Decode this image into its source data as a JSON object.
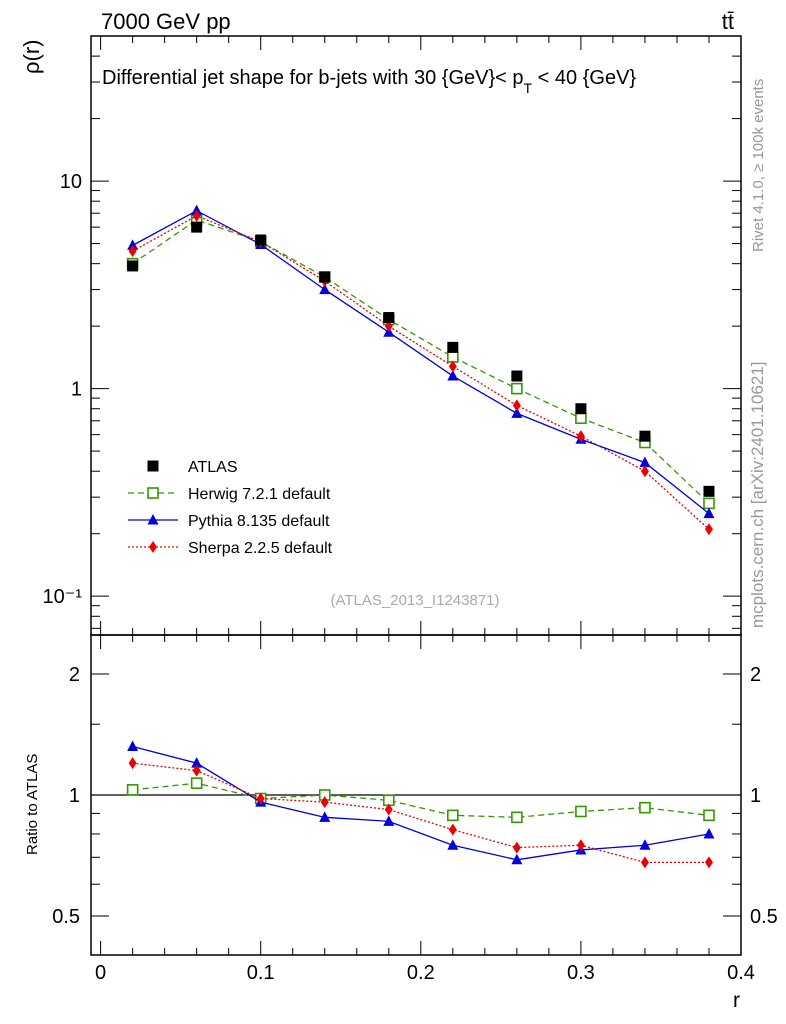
{
  "header": {
    "left": "7000 GeV pp",
    "right": "tt̄"
  },
  "side_labels": {
    "rivet": "Rivet 4.1.0, ≥ 100k events",
    "mcplots": "mcplots.cern.ch [arXiv:2401.10621]"
  },
  "chart_data": {
    "type": "scatter",
    "title_parts": {
      "main": "Differential jet shape for b-jets with 30 {GeV}< p",
      "sub": "T",
      "end": " < 40 {GeV}"
    },
    "analysis_label": "(ATLAS_2013_I1243871)",
    "xlabel": "r",
    "ylabel_main": "ρ(r)",
    "ylabel_ratio": "Ratio to ATLAS",
    "xlim": [
      -0.006,
      0.4
    ],
    "ylim_main": [
      0.065,
      50
    ],
    "ylim_ratio": [
      0.4,
      2.5
    ],
    "yscale": "log",
    "x_ticks": [
      {
        "value": 0,
        "label": "0"
      },
      {
        "value": 0.1,
        "label": "0.1"
      },
      {
        "value": 0.2,
        "label": "0.2"
      },
      {
        "value": 0.3,
        "label": "0.3"
      },
      {
        "value": 0.4,
        "label": "0.4"
      }
    ],
    "main_y_ticks": [
      {
        "value": 0.1,
        "label": "10⁻¹"
      },
      {
        "value": 1,
        "label": "1"
      },
      {
        "value": 10,
        "label": "10"
      }
    ],
    "ratio_y_ticks": [
      {
        "value": 0.5,
        "label": "0.5"
      },
      {
        "value": 1,
        "label": "1"
      },
      {
        "value": 2,
        "label": "2"
      }
    ],
    "x": [
      0.02,
      0.06,
      0.1,
      0.14,
      0.18,
      0.22,
      0.26,
      0.3,
      0.34,
      0.38
    ],
    "data": {
      "name": "ATLAS",
      "color": "#000000",
      "values": [
        3.9,
        6.0,
        5.2,
        3.45,
        2.2,
        1.58,
        1.15,
        0.8,
        0.59,
        0.32
      ]
    },
    "series": [
      {
        "name": "Herwig 7.2.1 default",
        "color": "#339900",
        "marker": "open-square",
        "dash": "dashed",
        "values": [
          4.0,
          6.5,
          5.1,
          3.45,
          2.15,
          1.42,
          1.0,
          0.72,
          0.55,
          0.28
        ],
        "ratio": [
          1.03,
          1.07,
          0.98,
          1.0,
          0.97,
          0.89,
          0.88,
          0.91,
          0.93,
          0.89
        ]
      },
      {
        "name": "Pythia 8.135 default",
        "color": "#0000dd",
        "marker": "triangle",
        "dash": "solid",
        "values": [
          4.9,
          7.2,
          4.95,
          3.0,
          1.87,
          1.15,
          0.76,
          0.57,
          0.44,
          0.25
        ],
        "ratio": [
          1.32,
          1.2,
          0.96,
          0.88,
          0.86,
          0.75,
          0.69,
          0.73,
          0.75,
          0.8
        ]
      },
      {
        "name": "Sherpa 2.2.5 default",
        "color": "#ee0000",
        "marker": "diamond",
        "dash": "dotted",
        "values": [
          4.6,
          6.8,
          5.1,
          3.3,
          2.0,
          1.28,
          0.83,
          0.59,
          0.4,
          0.21
        ],
        "ratio": [
          1.2,
          1.15,
          0.98,
          0.96,
          0.92,
          0.82,
          0.74,
          0.75,
          0.68,
          0.68
        ]
      }
    ]
  }
}
